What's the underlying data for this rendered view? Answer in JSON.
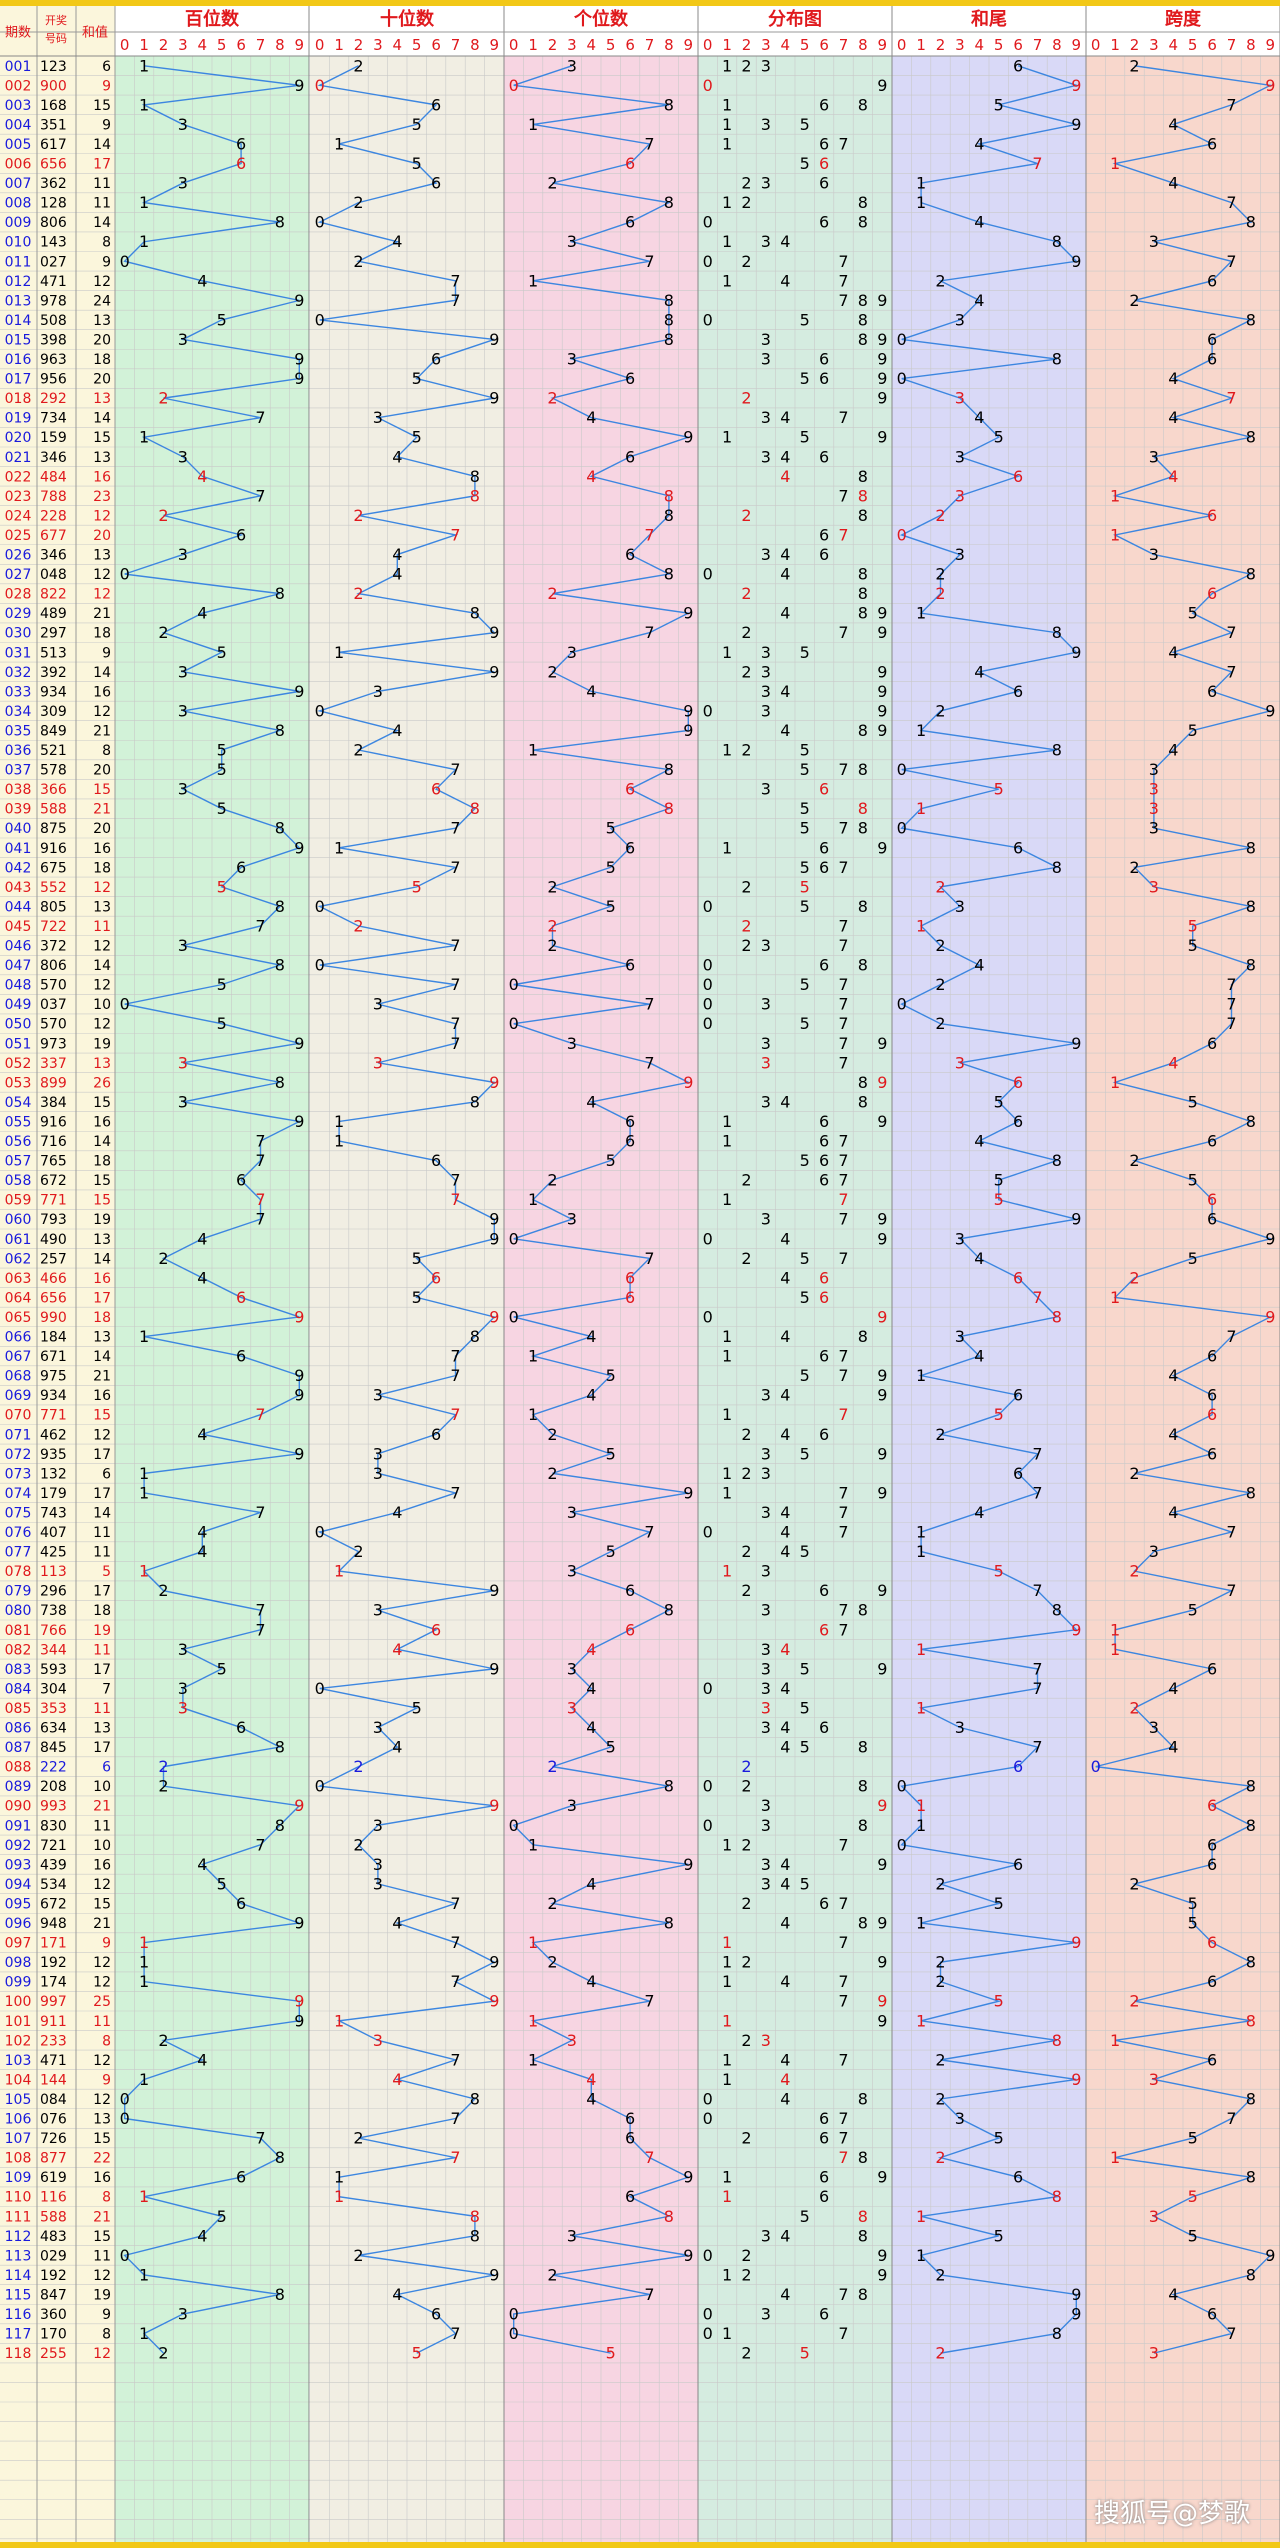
{
  "header": {
    "period_label": "期数",
    "number_label": "开奖号码",
    "sum_label": "和值",
    "sections": [
      "百位数",
      "十位数",
      "个位数",
      "分布图",
      "和尾",
      "跨度"
    ],
    "digits": [
      "0",
      "1",
      "2",
      "3",
      "4",
      "5",
      "6",
      "7",
      "8",
      "9"
    ]
  },
  "watermark": "搜狐号@梦歌",
  "colors": {
    "hundreds_bg": "#d2f2d8",
    "tens_bg": "#f1eee3",
    "units_bg": "#f7d5e2",
    "dist_bg": "#d5ece0",
    "sumtail_bg": "#d9d9f7",
    "span_bg": "#f8d7cc",
    "line": "#3c86e0",
    "red": "#e0191d",
    "blue": "#1a1adc",
    "gold": "#f2c817"
  },
  "chart_data": {
    "type": "table",
    "title": "",
    "columns": [
      "期数",
      "开奖号码",
      "和值",
      "百位数",
      "十位数",
      "个位数",
      "分布图",
      "和尾",
      "跨度"
    ],
    "periods": [
      "001",
      "002",
      "003",
      "004",
      "005",
      "006",
      "007",
      "008",
      "009",
      "010",
      "011",
      "012",
      "013",
      "014",
      "015",
      "016",
      "017",
      "018",
      "019",
      "020",
      "021",
      "022",
      "023",
      "024",
      "025",
      "026",
      "027",
      "028",
      "029",
      "030",
      "031",
      "032",
      "033",
      "034",
      "035",
      "036",
      "037",
      "038",
      "039",
      "040",
      "041",
      "042",
      "043",
      "044",
      "045",
      "046",
      "047",
      "048",
      "049",
      "050",
      "051",
      "052",
      "053",
      "054",
      "055",
      "056",
      "057",
      "058",
      "059",
      "060",
      "061",
      "062",
      "063",
      "064",
      "065",
      "066",
      "067",
      "068",
      "069",
      "070",
      "071",
      "072",
      "073",
      "074",
      "075",
      "076",
      "077",
      "078",
      "079",
      "080",
      "081",
      "082",
      "083",
      "084",
      "085",
      "086",
      "087",
      "088",
      "089",
      "090",
      "091",
      "092",
      "093",
      "094",
      "095",
      "096",
      "097",
      "098",
      "099",
      "100",
      "101",
      "102",
      "103",
      "104",
      "105",
      "106",
      "107",
      "108",
      "109",
      "110",
      "111",
      "112",
      "113",
      "114",
      "115",
      "116",
      "117",
      "118"
    ],
    "draws": [
      "123",
      "900",
      "168",
      "351",
      "617",
      "656",
      "362",
      "128",
      "806",
      "143",
      "027",
      "471",
      "978",
      "508",
      "398",
      "963",
      "956",
      "292",
      "734",
      "159",
      "346",
      "484",
      "788",
      "228",
      "677",
      "346",
      "048",
      "822",
      "489",
      "297",
      "513",
      "392",
      "934",
      "309",
      "849",
      "521",
      "578",
      "366",
      "588",
      "875",
      "916",
      "675",
      "552",
      "805",
      "722",
      "372",
      "806",
      "570",
      "037",
      "570",
      "973",
      "337",
      "899",
      "384",
      "916",
      "716",
      "765",
      "672",
      "771",
      "793",
      "490",
      "257",
      "466",
      "656",
      "990",
      "184",
      "671",
      "975",
      "934",
      "771",
      "462",
      "935",
      "132",
      "179",
      "743",
      "407",
      "425",
      "113",
      "296",
      "738",
      "766",
      "344",
      "593",
      "304",
      "353",
      "634",
      "845",
      "222",
      "208",
      "993",
      "830",
      "721",
      "439",
      "534",
      "672",
      "948",
      "171",
      "192",
      "174",
      "997",
      "911",
      "233",
      "471",
      "144",
      "084",
      "076",
      "726",
      "877",
      "619",
      "116",
      "588",
      "483",
      "029",
      "192",
      "847",
      "360",
      "170",
      "255"
    ],
    "sums": [
      6,
      9,
      15,
      9,
      14,
      17,
      11,
      11,
      14,
      8,
      9,
      12,
      24,
      13,
      20,
      18,
      20,
      13,
      14,
      15,
      13,
      16,
      23,
      12,
      20,
      13,
      12,
      12,
      21,
      18,
      9,
      14,
      16,
      12,
      21,
      8,
      20,
      15,
      21,
      20,
      16,
      18,
      12,
      13,
      11,
      12,
      14,
      12,
      10,
      12,
      19,
      13,
      26,
      15,
      16,
      14,
      18,
      15,
      15,
      19,
      13,
      14,
      16,
      17,
      18,
      13,
      14,
      21,
      16,
      15,
      12,
      17,
      6,
      17,
      14,
      11,
      11,
      5,
      17,
      18,
      19,
      11,
      17,
      7,
      11,
      13,
      17,
      6,
      10,
      21,
      11,
      10,
      16,
      12,
      15,
      21,
      9,
      12,
      12,
      25,
      11,
      8,
      12,
      9,
      12,
      13,
      15,
      22,
      16,
      8,
      21,
      15,
      11,
      12,
      19,
      9,
      8,
      12
    ],
    "axis_digits": [
      0,
      1,
      2,
      3,
      4,
      5,
      6,
      7,
      8,
      9
    ],
    "series": [
      {
        "name": "百位数"
      },
      {
        "name": "十位数"
      },
      {
        "name": "个位数"
      },
      {
        "name": "分布图"
      },
      {
        "name": "和尾"
      },
      {
        "name": "跨度"
      }
    ]
  }
}
